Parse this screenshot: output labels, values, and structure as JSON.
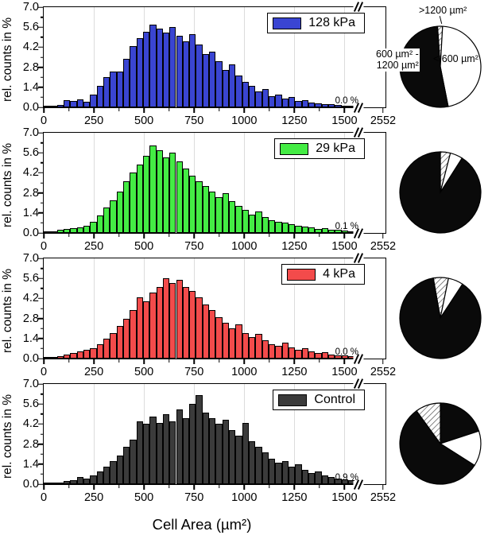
{
  "chart_data": {
    "type": "bar",
    "title": "",
    "xlabel": "Cell Area (µm²)",
    "ylabel": "rel. counts in %",
    "bin_width_um2": 33,
    "y_axis": {
      "ticks": [
        "0.0",
        "1.4",
        "2.8",
        "4.2",
        "5.6",
        "7.0"
      ],
      "max": 7.0
    },
    "x_axis": {
      "ticks": [
        0,
        250,
        500,
        750,
        1000,
        1250,
        1500
      ],
      "end_label": "2552",
      "axis_break": true,
      "max_linear": 1551,
      "linear_pct": 91
    },
    "panels": [
      {
        "label": "128 kPa",
        "color": "#3a45d2",
        "outlier_pct": "0.0 %",
        "values": [
          0.05,
          0.1,
          0.15,
          0.5,
          0.45,
          0.55,
          0.4,
          0.9,
          1.5,
          2.1,
          2.5,
          2.5,
          3.4,
          4.3,
          4.85,
          5.3,
          5.8,
          5.5,
          5.2,
          5.6,
          5.0,
          4.6,
          5.1,
          4.4,
          3.7,
          3.9,
          3.2,
          2.6,
          3.0,
          2.2,
          1.8,
          1.5,
          1.1,
          1.3,
          0.8,
          0.9,
          0.6,
          0.7,
          0.45,
          0.5,
          0.35,
          0.3,
          0.25,
          0.2,
          0.15,
          0.1,
          0.05
        ]
      },
      {
        "label": "29 kPa",
        "color": "#44ec44",
        "outlier_pct": "0.1 %",
        "values": [
          0.05,
          0.1,
          0.2,
          0.3,
          0.35,
          0.4,
          0.5,
          0.8,
          1.2,
          1.8,
          2.3,
          2.9,
          3.6,
          4.2,
          4.8,
          5.4,
          6.1,
          5.8,
          5.3,
          5.6,
          5.0,
          4.5,
          4.0,
          3.6,
          3.3,
          2.9,
          2.5,
          2.8,
          2.2,
          1.9,
          1.6,
          1.3,
          1.5,
          1.1,
          0.9,
          0.8,
          0.7,
          0.6,
          0.5,
          0.45,
          0.4,
          0.3,
          0.35,
          0.25,
          0.2,
          0.15,
          0.1
        ]
      },
      {
        "label": "4 kPa",
        "color": "#f34b4b",
        "outlier_pct": "0.0 %",
        "values": [
          0.05,
          0.1,
          0.15,
          0.3,
          0.4,
          0.5,
          0.6,
          0.7,
          1.0,
          1.4,
          1.8,
          2.3,
          2.8,
          3.4,
          4.3,
          4.0,
          4.6,
          5.0,
          5.6,
          5.3,
          5.5,
          5.0,
          4.7,
          4.3,
          3.8,
          3.4,
          2.9,
          2.5,
          2.1,
          2.4,
          1.8,
          1.5,
          1.7,
          1.3,
          1.0,
          0.9,
          1.1,
          0.8,
          0.6,
          0.7,
          0.5,
          0.4,
          0.45,
          0.3,
          0.25,
          0.2,
          0.15
        ]
      },
      {
        "label": "Control",
        "color": "#3b3b3b",
        "outlier_pct": "0.9 %",
        "values": [
          0.0,
          0.05,
          0.1,
          0.2,
          0.3,
          0.5,
          0.4,
          0.6,
          0.9,
          1.2,
          1.6,
          2.0,
          2.6,
          3.1,
          4.4,
          4.2,
          4.7,
          4.3,
          4.9,
          4.4,
          5.2,
          4.6,
          5.6,
          6.2,
          5.0,
          4.6,
          4.2,
          4.5,
          3.8,
          3.4,
          4.3,
          3.0,
          2.6,
          2.2,
          1.8,
          1.5,
          1.6,
          1.2,
          1.4,
          1.0,
          0.8,
          0.9,
          0.6,
          0.5,
          0.4,
          0.35,
          0.3
        ]
      }
    ],
    "pies": [
      {
        "name": "128 kPa",
        "start_deg": -4,
        "slices": [
          {
            "label": ">1200 µm²",
            "pct": 2,
            "fill": "hatch"
          },
          {
            "label": "< 600 µm²",
            "pct": 46,
            "fill": "white"
          },
          {
            "label": "600 µm² - 1200 µm²",
            "pct": 52,
            "fill": "black"
          }
        ]
      },
      {
        "name": "29 kPa",
        "start_deg": 0,
        "slices": [
          {
            "label": ">1200 µm²",
            "pct": 4,
            "fill": "hatch"
          },
          {
            "label": "< 600 µm²",
            "pct": 5,
            "fill": "white"
          },
          {
            "label": "600 µm² - 1200 µm²",
            "pct": 91,
            "fill": "black"
          }
        ]
      },
      {
        "name": "4 kPa",
        "start_deg": -10,
        "slices": [
          {
            "label": ">1200 µm²",
            "pct": 6,
            "fill": "hatch"
          },
          {
            "label": "< 600 µm²",
            "pct": 6,
            "fill": "white"
          },
          {
            "label": "600 µm² - 1200 µm²",
            "pct": 88,
            "fill": "black"
          }
        ]
      },
      {
        "name": "Control",
        "start_deg": 0,
        "slices": [
          {
            "label": "600 µm² - 1200 µm²",
            "pct": 20,
            "fill": "black"
          },
          {
            "label": "< 600 µm²",
            "pct": 14,
            "fill": "white"
          },
          {
            "label": "600 µm² - 1200 µm²",
            "pct": 56,
            "fill": "black"
          },
          {
            "label": ">1200 µm²",
            "pct": 10,
            "fill": "hatch"
          }
        ]
      }
    ],
    "pie_annotations": {
      "over": ">1200 µm²",
      "mid_line1": "600 µm² -",
      "mid_line2": "1200 µm²",
      "under": "< 600 µm²"
    }
  }
}
